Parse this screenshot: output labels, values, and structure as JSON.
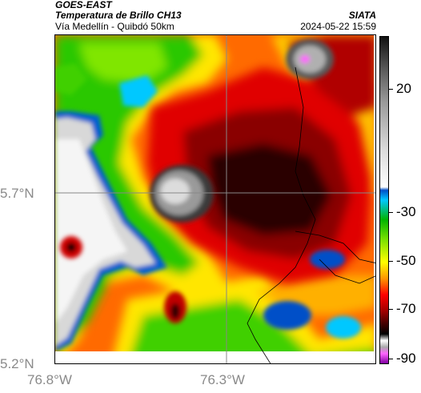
{
  "header": {
    "product": "GOES-EAST",
    "title": "Temperatura de Brillo CH13",
    "subtitle": "Vía Medellín - Quibdó 50km",
    "source": "SIATA",
    "timestamp": "2024-05-22 15:59"
  },
  "map": {
    "lat_labels": [
      "5.7°N",
      "5.2°N"
    ],
    "lon_labels": [
      "76.8°W",
      "76.3°W"
    ]
  },
  "colorbar": {
    "labels": [
      "20",
      "-30",
      "-50",
      "-70",
      "-90"
    ],
    "colors": [
      "#111111",
      "#5a5a5a",
      "#9a9a9a",
      "#dcdcdc",
      "#ffffff",
      "#0050c8",
      "#00c8ff",
      "#00b400",
      "#78e000",
      "#ffff00",
      "#ff9600",
      "#ff0000",
      "#a00000",
      "#400000",
      "#000000",
      "#ffffff",
      "#aaaaaa",
      "#ff64ff",
      "#8000a0"
    ]
  }
}
